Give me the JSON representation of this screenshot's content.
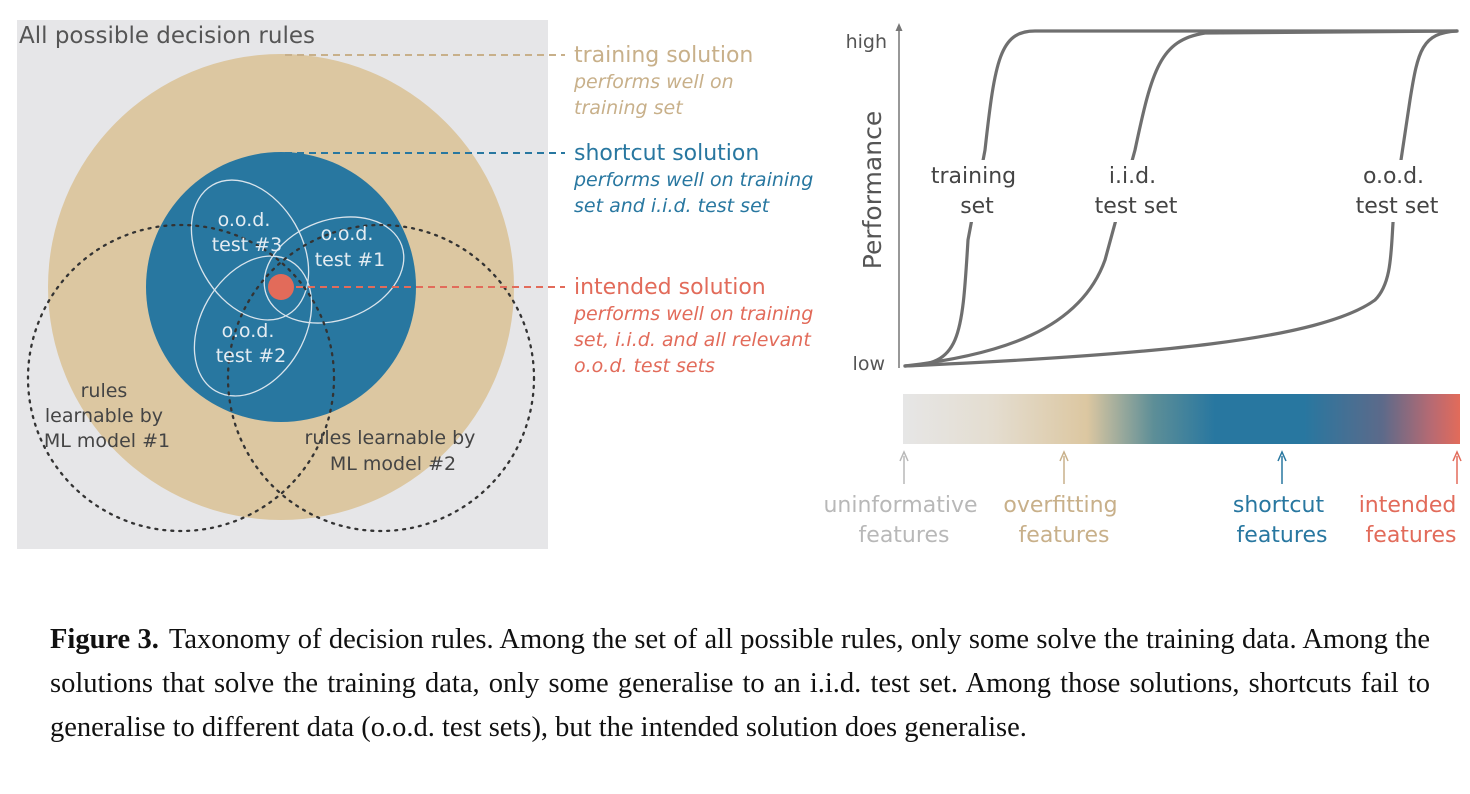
{
  "colors": {
    "panel_bg": "#e6e6e8",
    "training": "#dcc7a1",
    "training_text": "#c8b08a",
    "shortcut": "#2877a0",
    "intended": "#e26b5a",
    "curve": "#6f6f6f",
    "uninformative_text": "#b8b8b8",
    "label_dark": "#444444"
  },
  "left_panel": {
    "title": "All possible decision rules",
    "ood3": [
      "o.o.d.",
      "test #3"
    ],
    "ood1": [
      "o.o.d.",
      "test #1"
    ],
    "ood2": [
      "o.o.d.",
      "test #2"
    ],
    "model1": [
      "rules",
      "learnable by",
      "ML model #1"
    ],
    "model2": [
      "rules learnable by",
      "ML model #2"
    ]
  },
  "legend": {
    "training": {
      "title": "training solution",
      "desc": [
        "performs well on",
        "training set"
      ]
    },
    "shortcut": {
      "title": "shortcut solution",
      "desc": [
        "performs well on training",
        "set and i.i.d. test set"
      ]
    },
    "intended": {
      "title": "intended solution",
      "desc": [
        "performs well on training",
        "set, i.i.d. and all relevant",
        "o.o.d. test sets"
      ]
    }
  },
  "performance_chart": {
    "ylabel": "Performance",
    "ytick_high": "high",
    "ytick_low": "low",
    "curves": [
      {
        "name": "training set",
        "label": [
          "training",
          "set"
        ]
      },
      {
        "name": "i.i.d. test set",
        "label": [
          "i.i.d.",
          "test set"
        ]
      },
      {
        "name": "o.o.d. test set",
        "label": [
          "o.o.d.",
          "test set"
        ]
      }
    ]
  },
  "feature_scale": {
    "items": [
      {
        "label": [
          "uninformative",
          "features"
        ],
        "color": "#b8b8b8"
      },
      {
        "label": [
          "overfitting",
          "features"
        ],
        "color": "#c8b08a"
      },
      {
        "label": [
          "shortcut",
          "features"
        ],
        "color": "#2877a0"
      },
      {
        "label": [
          "intended",
          "features"
        ],
        "color": "#e26b5a"
      }
    ]
  },
  "caption": {
    "label": "Figure 3.",
    "text": "Taxonomy of decision rules. Among the set of all possible rules, only some solve the training data. Among the solutions that solve the training data, only some generalise to an i.i.d. test set. Among those solutions, shortcuts fail to generalise to different data (o.o.d. test sets), but the intended solution does generalise."
  }
}
